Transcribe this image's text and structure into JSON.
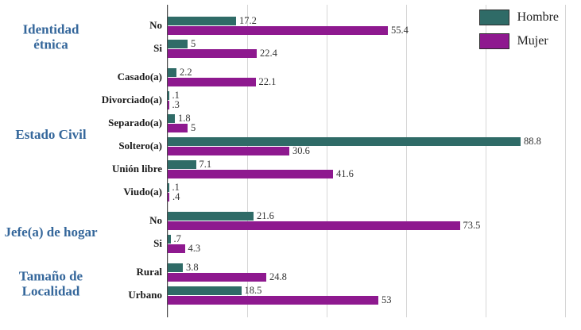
{
  "chart_data": {
    "type": "bar",
    "orientation": "horizontal",
    "title": "",
    "xlabel": "",
    "ylabel": "",
    "xlim": [
      0,
      100
    ],
    "grid": true,
    "gridline_interval": 20,
    "legend_position": "top-right",
    "legend": [
      {
        "name": "Hombre",
        "color": "#2F6B67"
      },
      {
        "name": "Mujer",
        "color": "#8E198F"
      }
    ],
    "groups": [
      {
        "section": "Identidad étnica",
        "rows": [
          {
            "label": "No",
            "hombre": "17.2",
            "mujer": "55.4"
          },
          {
            "label": "Si",
            "hombre": "5",
            "mujer": "22.4"
          }
        ]
      },
      {
        "section": "Estado Civil",
        "rows": [
          {
            "label": "Casado(a)",
            "hombre": "2.2",
            "mujer": "22.1"
          },
          {
            "label": "Divorciado(a)",
            "hombre": ".1",
            "mujer": ".3"
          },
          {
            "label": "Separado(a)",
            "hombre": "1.8",
            "mujer": "5"
          },
          {
            "label": "Soltero(a)",
            "hombre": "88.8",
            "mujer": "30.6"
          },
          {
            "label": "Unión libre",
            "hombre": "7.1",
            "mujer": "41.6"
          },
          {
            "label": "Viudo(a)",
            "hombre": ".1",
            "mujer": ".4"
          }
        ]
      },
      {
        "section": "Jefe(a) de hogar",
        "rows": [
          {
            "label": "No",
            "hombre": "21.6",
            "mujer": "73.5"
          },
          {
            "label": "Si",
            "hombre": ".7",
            "mujer": "4.3"
          }
        ]
      },
      {
        "section": "Tamaño de Localidad",
        "rows": [
          {
            "label": "Rural",
            "hombre": "3.8",
            "mujer": "24.8"
          },
          {
            "label": "Urbano",
            "hombre": "18.5",
            "mujer": "53"
          }
        ]
      }
    ]
  }
}
